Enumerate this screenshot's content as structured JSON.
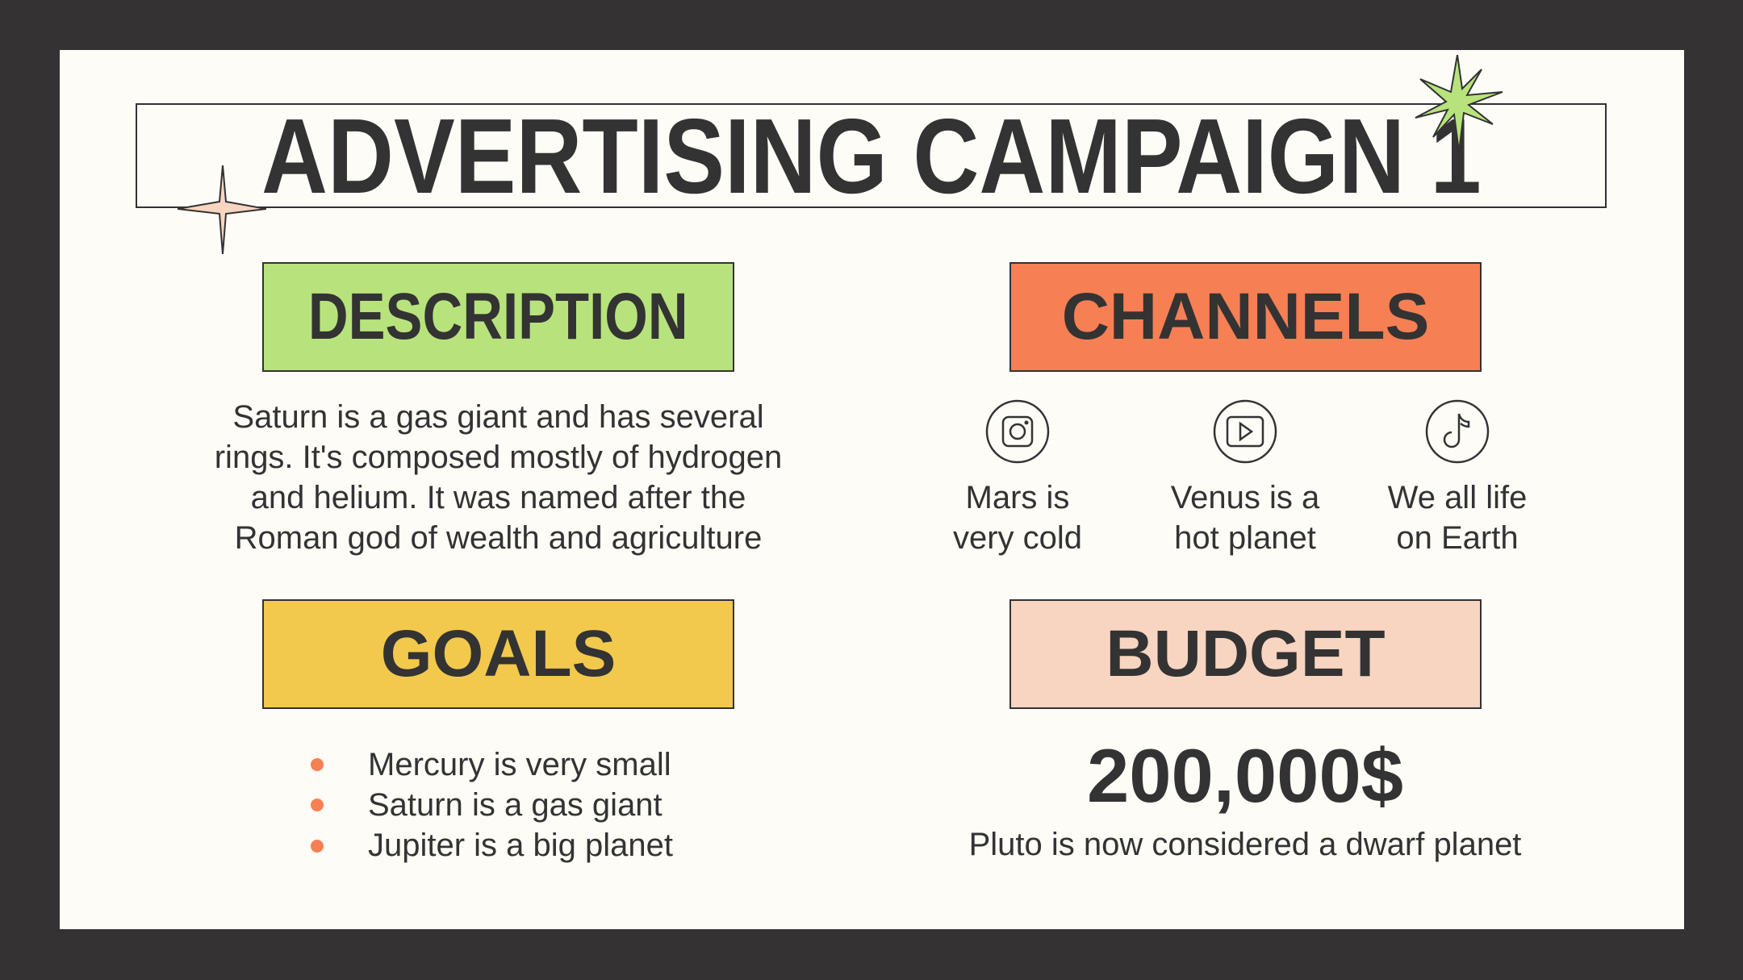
{
  "title": "ADVERTISING CAMPAIGN 1",
  "colors": {
    "background": "#343233",
    "slide": "#fdfcf7",
    "green": "#b8e37c",
    "orange": "#f77f54",
    "yellow": "#f2c94c",
    "peach": "#f8d5c1",
    "text": "#333333"
  },
  "description": {
    "heading": "DESCRIPTION",
    "lines": [
      "Saturn is a gas giant and has several",
      "rings. It's composed mostly of hydrogen",
      "and helium. It was named after the",
      "Roman god of wealth and agriculture"
    ]
  },
  "channels": {
    "heading": "CHANNELS",
    "items": [
      {
        "icon": "instagram-icon",
        "lines": [
          "Mars is",
          "very cold"
        ]
      },
      {
        "icon": "youtube-icon",
        "lines": [
          "Venus is a",
          "hot planet"
        ]
      },
      {
        "icon": "tiktok-icon",
        "lines": [
          "We all life",
          "on Earth"
        ]
      }
    ]
  },
  "goals": {
    "heading": "GOALS",
    "items": [
      "Mercury is very small",
      "Saturn is a gas giant",
      "Jupiter is a big planet"
    ]
  },
  "budget": {
    "heading": "BUDGET",
    "amount": "200,000$",
    "caption": "Pluto is now considered a dwarf planet"
  }
}
